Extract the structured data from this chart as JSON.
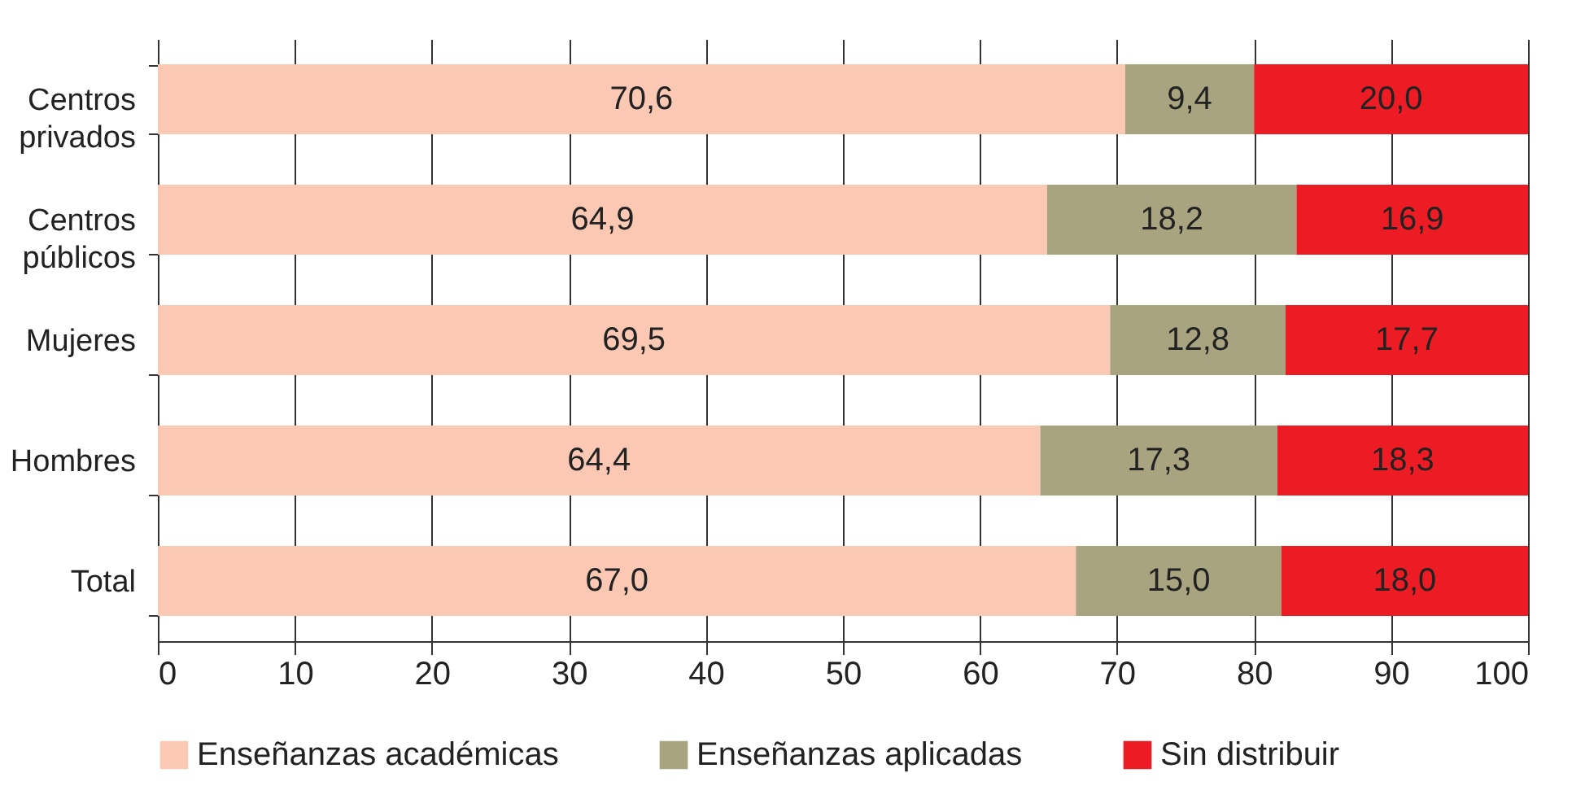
{
  "chart_data": {
    "type": "bar",
    "orientation": "horizontal",
    "stacked": true,
    "categories": [
      "Centros privados",
      "Centros públicos",
      "Mujeres",
      "Hombres",
      "Total"
    ],
    "series": [
      {
        "name": "Enseñanzas académicas",
        "color": "#fbc9b3",
        "values": [
          70.6,
          64.9,
          69.5,
          64.4,
          67.0
        ],
        "value_labels": [
          "70,6",
          "64,9",
          "69,5",
          "64,4",
          "67,0"
        ]
      },
      {
        "name": "Enseñanzas aplicadas",
        "color": "#a8a47f",
        "values": [
          9.4,
          18.2,
          12.8,
          17.3,
          15.0
        ],
        "value_labels": [
          "9,4",
          "18,2",
          "12,8",
          "17,3",
          "15,0"
        ]
      },
      {
        "name": "Sin distribuir",
        "color": "#ed1c24",
        "values": [
          20.0,
          16.9,
          17.7,
          18.3,
          18.0
        ],
        "value_labels": [
          "20,0",
          "16,9",
          "17,7",
          "18,3",
          "18,0"
        ]
      }
    ],
    "xlim": [
      0,
      100
    ],
    "xticks": [
      0,
      10,
      20,
      30,
      40,
      50,
      60,
      70,
      80,
      90,
      100
    ],
    "grid": "x",
    "legend": "bottom"
  }
}
